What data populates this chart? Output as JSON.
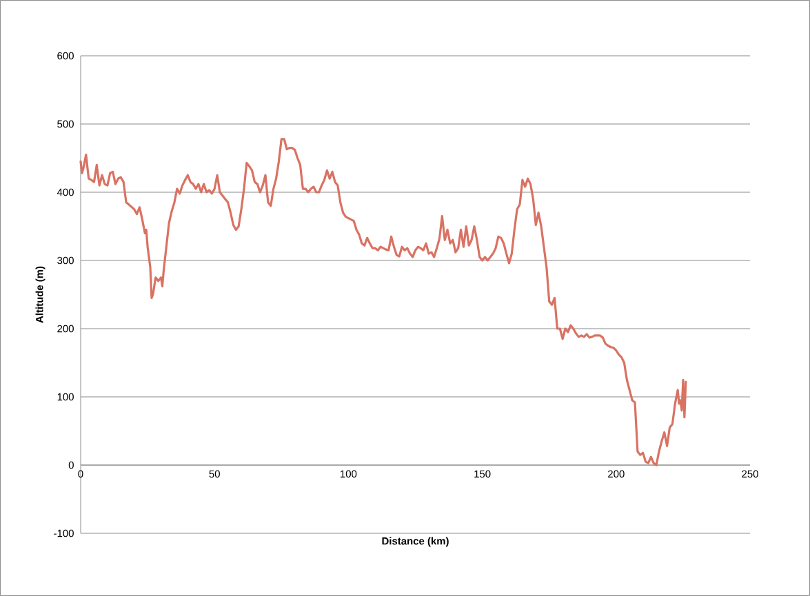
{
  "chart_data": {
    "type": "line",
    "xlabel": "Distance (km)",
    "ylabel": "Altitude (m)",
    "xlim": [
      0,
      250
    ],
    "xticks": [
      0,
      50,
      100,
      150,
      200,
      250
    ],
    "ylim": [
      -100,
      600
    ],
    "yticks": [
      -100,
      0,
      100,
      200,
      300,
      400,
      500,
      600
    ],
    "grid": "y",
    "marker": "none",
    "line_style": "solid",
    "series": [
      {
        "color": "#d97263",
        "x": [
          0,
          0.5,
          1,
          2,
          3,
          4,
          5,
          6,
          7,
          8,
          9,
          10,
          11,
          12,
          13,
          14,
          15,
          16,
          17,
          18,
          20,
          21,
          22,
          23,
          24,
          24.5,
          25,
          26,
          26.5,
          27,
          28,
          29,
          30,
          30.5,
          31,
          32,
          33,
          34,
          35,
          36,
          37,
          38,
          39,
          40,
          41,
          42,
          43,
          44,
          45,
          46,
          47,
          48,
          49,
          50,
          51,
          52,
          53,
          54,
          55,
          56,
          57,
          58,
          59,
          60,
          61,
          62,
          63,
          64,
          65,
          66,
          67,
          68,
          69,
          70,
          71,
          72,
          73,
          74,
          75,
          76,
          77,
          78,
          79,
          80,
          81,
          82,
          83,
          84,
          85,
          86,
          87,
          88,
          89,
          90,
          91,
          92,
          93,
          94,
          95,
          96,
          97,
          98,
          99,
          100,
          101,
          102,
          103,
          104,
          105,
          106,
          107,
          108,
          109,
          110,
          111,
          112,
          113,
          114,
          115,
          116,
          117,
          118,
          119,
          120,
          121,
          122,
          123,
          124,
          125,
          126,
          127,
          128,
          129,
          130,
          131,
          132,
          133,
          134,
          135,
          136,
          137,
          138,
          139,
          140,
          141,
          142,
          143,
          144,
          145,
          146,
          147,
          148,
          149,
          150,
          151,
          152,
          153,
          154,
          155,
          156,
          157,
          158,
          159,
          160,
          161,
          162,
          163,
          164,
          165,
          166,
          167,
          168,
          169,
          170,
          171,
          172,
          173,
          174,
          175,
          176,
          177,
          178,
          179,
          180,
          181,
          182,
          183,
          184,
          185,
          186,
          187,
          188,
          189,
          190,
          191,
          192,
          193,
          194,
          195,
          196,
          197,
          198,
          199,
          200,
          201,
          202,
          203,
          204,
          205,
          206,
          207,
          208,
          209,
          210,
          211,
          212,
          213,
          214,
          215,
          216,
          217,
          218,
          219,
          220,
          221,
          222,
          223,
          223.5,
          224,
          224.5,
          225,
          225.5,
          226
        ],
        "values": [
          445,
          428,
          435,
          455,
          420,
          418,
          415,
          440,
          410,
          425,
          412,
          410,
          428,
          430,
          412,
          420,
          422,
          415,
          385,
          382,
          375,
          368,
          378,
          360,
          340,
          345,
          320,
          290,
          245,
          250,
          275,
          270,
          275,
          262,
          285,
          320,
          355,
          372,
          385,
          405,
          398,
          410,
          418,
          425,
          415,
          412,
          405,
          412,
          400,
          412,
          400,
          403,
          398,
          405,
          425,
          400,
          395,
          390,
          385,
          370,
          352,
          345,
          350,
          375,
          405,
          443,
          438,
          432,
          415,
          412,
          400,
          410,
          425,
          385,
          380,
          405,
          420,
          445,
          478,
          478,
          463,
          465,
          465,
          462,
          450,
          440,
          405,
          405,
          400,
          405,
          408,
          400,
          400,
          410,
          418,
          432,
          420,
          430,
          415,
          410,
          385,
          370,
          364,
          362,
          360,
          358,
          345,
          338,
          325,
          322,
          333,
          325,
          318,
          318,
          315,
          320,
          318,
          316,
          315,
          335,
          320,
          308,
          306,
          320,
          315,
          318,
          310,
          305,
          315,
          320,
          318,
          315,
          325,
          310,
          312,
          305,
          318,
          332,
          365,
          330,
          345,
          325,
          330,
          312,
          318,
          345,
          320,
          350,
          322,
          330,
          350,
          330,
          305,
          300,
          305,
          300,
          305,
          310,
          318,
          335,
          333,
          325,
          310,
          296,
          310,
          345,
          375,
          382,
          418,
          408,
          420,
          412,
          390,
          352,
          370,
          350,
          320,
          290,
          240,
          235,
          245,
          200,
          200,
          185,
          200,
          195,
          205,
          200,
          193,
          188,
          190,
          188,
          192,
          187,
          188,
          190,
          190,
          190,
          187,
          178,
          175,
          173,
          172,
          168,
          162,
          158,
          150,
          125,
          110,
          95,
          92,
          20,
          15,
          18,
          5,
          3,
          12,
          3,
          0,
          20,
          35,
          48,
          28,
          55,
          60,
          90,
          110,
          90,
          95,
          80,
          125,
          70,
          122
        ]
      }
    ]
  }
}
